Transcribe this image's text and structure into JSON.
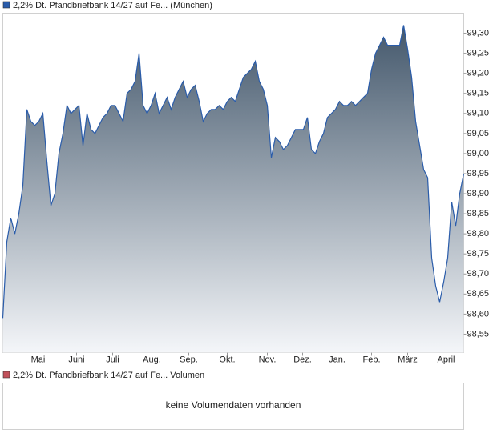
{
  "chart_data": {
    "type": "area",
    "series": [
      {
        "name": "2,2% Dt. Pfandbriefbank 14/27 auf Fe... (München)",
        "color": "#2a5caa",
        "values": [
          98.59,
          98.78,
          98.84,
          98.8,
          98.85,
          98.92,
          99.11,
          99.08,
          99.07,
          99.08,
          99.1,
          98.98,
          98.87,
          98.9,
          99.0,
          99.05,
          99.12,
          99.1,
          99.11,
          99.12,
          99.02,
          99.1,
          99.06,
          99.05,
          99.07,
          99.09,
          99.1,
          99.12,
          99.12,
          99.1,
          99.08,
          99.15,
          99.16,
          99.18,
          99.25,
          99.12,
          99.1,
          99.12,
          99.15,
          99.1,
          99.12,
          99.14,
          99.11,
          99.14,
          99.16,
          99.18,
          99.14,
          99.16,
          99.17,
          99.13,
          99.08,
          99.1,
          99.11,
          99.11,
          99.12,
          99.11,
          99.13,
          99.14,
          99.13,
          99.16,
          99.19,
          99.2,
          99.21,
          99.23,
          99.18,
          99.16,
          99.12,
          98.99,
          99.04,
          99.03,
          99.01,
          99.02,
          99.04,
          99.06,
          99.06,
          99.06,
          99.09,
          99.01,
          99.0,
          99.03,
          99.05,
          99.09,
          99.1,
          99.11,
          99.13,
          99.12,
          99.12,
          99.13,
          99.12,
          99.13,
          99.14,
          99.15,
          99.21,
          99.25,
          99.27,
          99.29,
          99.27,
          99.27,
          99.27,
          99.27,
          99.32,
          99.26,
          99.19,
          99.08,
          99.02,
          98.96,
          98.94,
          98.74,
          98.67,
          98.63,
          98.68,
          98.74,
          98.88,
          98.82,
          98.9,
          98.95
        ]
      }
    ],
    "xlim": [
      0,
      115
    ],
    "xticks": [
      {
        "value": 8.8,
        "label": "Mai"
      },
      {
        "value": 18.4,
        "label": "Juni"
      },
      {
        "value": 27.4,
        "label": "Juli"
      },
      {
        "value": 37.2,
        "label": "Aug."
      },
      {
        "value": 46.4,
        "label": "Sep."
      },
      {
        "value": 56,
        "label": "Okt."
      },
      {
        "value": 66,
        "label": "Nov."
      },
      {
        "value": 74.8,
        "label": "Dez."
      },
      {
        "value": 83.4,
        "label": "Jan."
      },
      {
        "value": 92,
        "label": "Feb."
      },
      {
        "value": 101,
        "label": "März"
      },
      {
        "value": 110.6,
        "label": "April"
      }
    ],
    "ylim": [
      98.504,
      99.35
    ],
    "yticks": [
      {
        "value": 98.55,
        "label": "98,55"
      },
      {
        "value": 98.6,
        "label": "98,60"
      },
      {
        "value": 98.65,
        "label": "98,65"
      },
      {
        "value": 98.7,
        "label": "98,70"
      },
      {
        "value": 98.75,
        "label": "98,75"
      },
      {
        "value": 98.8,
        "label": "98,80"
      },
      {
        "value": 98.85,
        "label": "98,85"
      },
      {
        "value": 98.9,
        "label": "98,90"
      },
      {
        "value": 98.95,
        "label": "98,95"
      },
      {
        "value": 99,
        "label": "99,00"
      },
      {
        "value": 99.05,
        "label": "99,05"
      },
      {
        "value": 99.1,
        "label": "99,10"
      },
      {
        "value": 99.15,
        "label": "99,15"
      },
      {
        "value": 99.2,
        "label": "99,20"
      },
      {
        "value": 99.25,
        "label": "99,25"
      },
      {
        "value": 99.3,
        "label": "99,30"
      }
    ],
    "grid": false
  },
  "volume_panel": {
    "legend": "2,2% Dt. Pfandbriefbank 14/27 auf Fe... Volumen",
    "legend_color": "#c0505a",
    "message": "keine Volumendaten vorhanden"
  }
}
